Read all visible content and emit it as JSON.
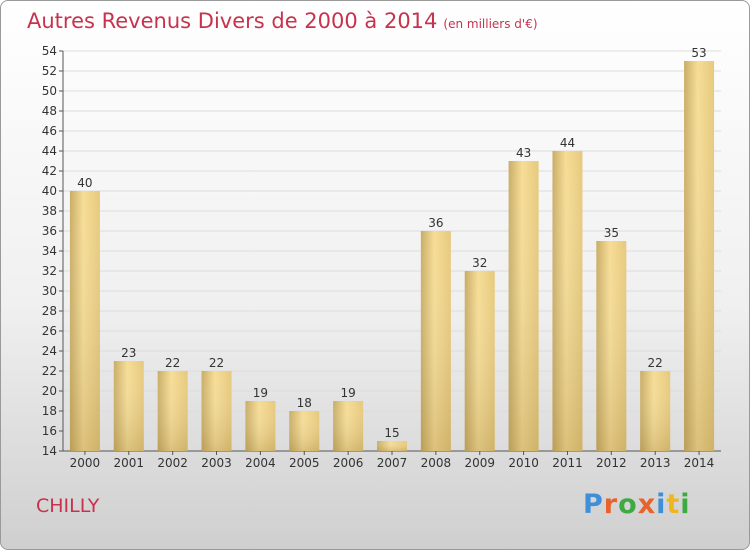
{
  "title": "Autres Revenus Divers de 2000 à 2014",
  "title_unit": "(en milliers d'€)",
  "commune": "CHILLY",
  "logo": [
    "P",
    "r",
    "o",
    "x",
    "i",
    "t",
    "i"
  ],
  "colors": {
    "bar_light": "#f6dd96",
    "bar_dark": "#c9ad66",
    "title": "#c8324d",
    "grid": "#dddddd"
  },
  "chart_data": {
    "type": "bar",
    "title": "Autres Revenus Divers de 2000 à 2014",
    "categories": [
      "2000",
      "2001",
      "2002",
      "2003",
      "2004",
      "2005",
      "2006",
      "2007",
      "2008",
      "2009",
      "2010",
      "2011",
      "2012",
      "2013",
      "2014"
    ],
    "values": [
      40,
      23,
      22,
      22,
      19,
      18,
      19,
      15,
      36,
      32,
      43,
      44,
      35,
      22,
      53
    ],
    "ylim": [
      14,
      54
    ],
    "yticks": [
      14,
      16,
      18,
      20,
      22,
      24,
      26,
      28,
      30,
      32,
      34,
      36,
      38,
      40,
      42,
      44,
      46,
      48,
      50,
      52,
      54
    ],
    "grid": true,
    "xlabel": "",
    "ylabel": ""
  }
}
